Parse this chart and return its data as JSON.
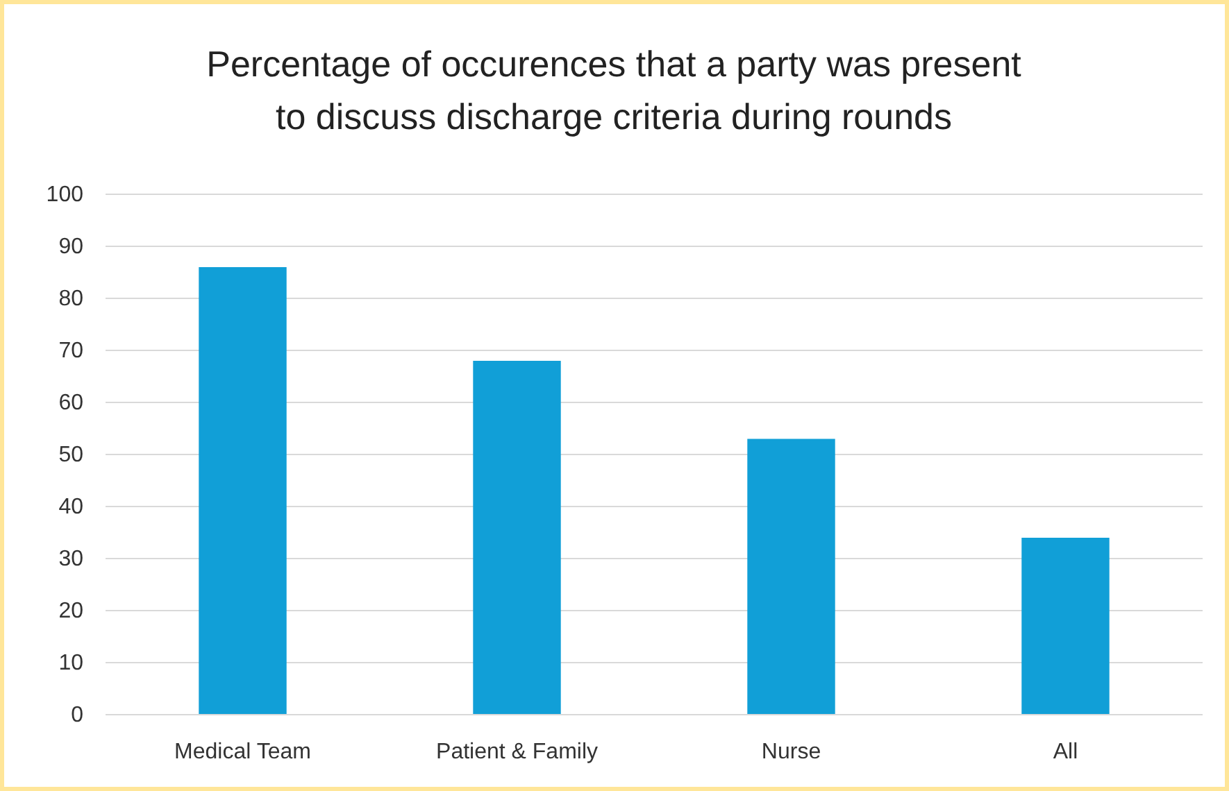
{
  "chart_data": {
    "type": "bar",
    "title": "Percentage of occurences that a party was present\nto discuss discharge criteria during rounds",
    "categories": [
      "Medical Team",
      "Patient & Family",
      "Nurse",
      "All"
    ],
    "values": [
      86,
      68,
      53,
      34
    ],
    "color": "#119fd7",
    "ylim": [
      0,
      100
    ],
    "yticks": [
      0,
      10,
      20,
      30,
      40,
      50,
      60,
      70,
      80,
      90,
      100
    ],
    "grid": true
  }
}
